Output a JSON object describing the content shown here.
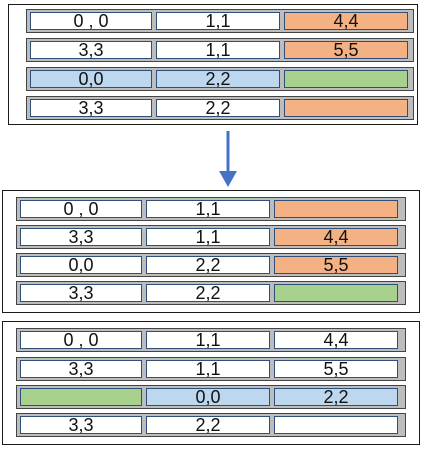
{
  "colors": {
    "white": "#ffffff",
    "orange": "#f4b183",
    "blue": "#bdd7ee",
    "green": "#a9d18e",
    "arrow": "#4472c4",
    "border": "#2f4f7a",
    "row_bg": "#bdbdbd"
  },
  "panels": [
    {
      "rows": [
        [
          {
            "text": "0 , 0",
            "color": "white"
          },
          {
            "text": "1,1",
            "color": "white"
          },
          {
            "text": "4,4",
            "color": "orange"
          }
        ],
        [
          {
            "text": "3,3",
            "color": "white"
          },
          {
            "text": "1,1",
            "color": "white"
          },
          {
            "text": "5,5",
            "color": "orange"
          }
        ],
        [
          {
            "text": "0,0",
            "color": "blue"
          },
          {
            "text": "2,2",
            "color": "blue"
          },
          {
            "text": "",
            "color": "green"
          }
        ],
        [
          {
            "text": "3,3",
            "color": "white"
          },
          {
            "text": "2,2",
            "color": "white"
          },
          {
            "text": "",
            "color": "orange"
          }
        ]
      ]
    },
    {
      "rows": [
        [
          {
            "text": "0 , 0",
            "color": "white"
          },
          {
            "text": "1,1",
            "color": "white"
          },
          {
            "text": "",
            "color": "orange"
          }
        ],
        [
          {
            "text": "3,3",
            "color": "white"
          },
          {
            "text": "1,1",
            "color": "white"
          },
          {
            "text": "4,4",
            "color": "orange"
          }
        ],
        [
          {
            "text": "0,0",
            "color": "white"
          },
          {
            "text": "2,2",
            "color": "white"
          },
          {
            "text": "5,5",
            "color": "orange"
          }
        ],
        [
          {
            "text": "3,3",
            "color": "white"
          },
          {
            "text": "2,2",
            "color": "white"
          },
          {
            "text": "",
            "color": "green"
          }
        ]
      ]
    },
    {
      "rows": [
        [
          {
            "text": "0 , 0",
            "color": "white"
          },
          {
            "text": "1,1",
            "color": "white"
          },
          {
            "text": "4,4",
            "color": "white"
          }
        ],
        [
          {
            "text": "3,3",
            "color": "white"
          },
          {
            "text": "1,1",
            "color": "white"
          },
          {
            "text": "5,5",
            "color": "white"
          }
        ],
        [
          {
            "text": "",
            "color": "green"
          },
          {
            "text": "0,0",
            "color": "blue"
          },
          {
            "text": "2,2",
            "color": "blue"
          }
        ],
        [
          {
            "text": "3,3",
            "color": "white"
          },
          {
            "text": "2,2",
            "color": "white"
          },
          {
            "text": "",
            "color": "white"
          }
        ]
      ]
    }
  ],
  "arrow_icon": "down-arrow-icon"
}
